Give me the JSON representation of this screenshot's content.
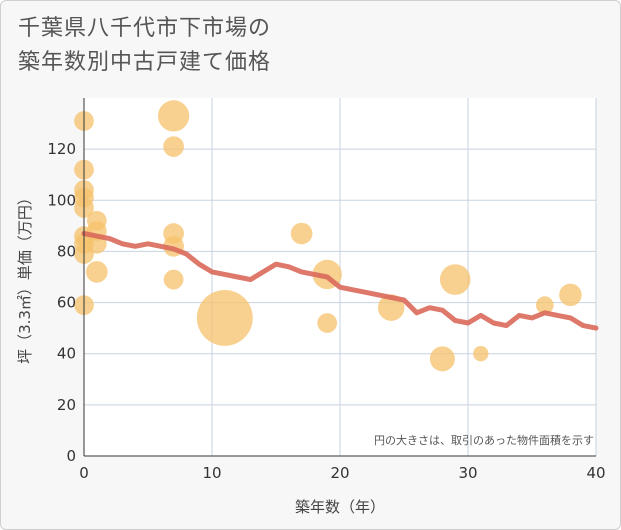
{
  "title_lines": [
    "千葉県八千代市下市場の",
    "築年数別中古戸建て価格"
  ],
  "chart_data": {
    "type": "scatter",
    "title": "千葉県八千代市下市場の築年数別中古戸建て価格",
    "xlabel": "築年数（年）",
    "ylabel": "坪（3.3㎡）単価（万円）",
    "xlim": [
      0,
      40
    ],
    "ylim": [
      0,
      140
    ],
    "xticks": [
      0,
      10,
      20,
      30,
      40
    ],
    "yticks": [
      0,
      20,
      40,
      60,
      80,
      100,
      120
    ],
    "grid": true,
    "note": "円の大きさは、取引のあった物件面積を示す",
    "colors": {
      "bubble": "#f5c26b",
      "trend": "#d9695a",
      "grid": "#c9d3e0",
      "plot_bg": "#ffffff"
    },
    "points": [
      {
        "x": 0,
        "y": 131,
        "size": 1
      },
      {
        "x": 0,
        "y": 112,
        "size": 1
      },
      {
        "x": 0,
        "y": 104,
        "size": 1
      },
      {
        "x": 0,
        "y": 101,
        "size": 1
      },
      {
        "x": 0,
        "y": 97,
        "size": 1
      },
      {
        "x": 0,
        "y": 86,
        "size": 1
      },
      {
        "x": 0,
        "y": 83,
        "size": 1
      },
      {
        "x": 0,
        "y": 79,
        "size": 1
      },
      {
        "x": 0,
        "y": 59,
        "size": 1
      },
      {
        "x": 1,
        "y": 92,
        "size": 1
      },
      {
        "x": 1,
        "y": 88,
        "size": 1
      },
      {
        "x": 1,
        "y": 83,
        "size": 1
      },
      {
        "x": 1,
        "y": 72,
        "size": 1.2
      },
      {
        "x": 7,
        "y": 133,
        "size": 2.5
      },
      {
        "x": 7,
        "y": 121,
        "size": 1.1
      },
      {
        "x": 7,
        "y": 87,
        "size": 1.1
      },
      {
        "x": 7,
        "y": 82,
        "size": 1.1
      },
      {
        "x": 7,
        "y": 69,
        "size": 1
      },
      {
        "x": 11,
        "y": 54,
        "size": 8
      },
      {
        "x": 17,
        "y": 87,
        "size": 1.2
      },
      {
        "x": 19,
        "y": 71,
        "size": 2.2
      },
      {
        "x": 19,
        "y": 52,
        "size": 1
      },
      {
        "x": 24,
        "y": 58,
        "size": 1.8
      },
      {
        "x": 28,
        "y": 38,
        "size": 1.6
      },
      {
        "x": 29,
        "y": 69,
        "size": 2.4
      },
      {
        "x": 31,
        "y": 40,
        "size": 0.6
      },
      {
        "x": 36,
        "y": 59,
        "size": 0.8
      },
      {
        "x": 38,
        "y": 63,
        "size": 1.3
      }
    ],
    "trend": {
      "x": [
        0,
        1,
        2,
        3,
        4,
        5,
        6,
        7,
        8,
        9,
        10,
        11,
        12,
        13,
        14,
        15,
        16,
        17,
        18,
        19,
        20,
        21,
        22,
        23,
        24,
        25,
        26,
        27,
        28,
        29,
        30,
        31,
        32,
        33,
        34,
        35,
        36,
        37,
        38,
        39,
        40
      ],
      "y": [
        87,
        86,
        85,
        83,
        82,
        83,
        82,
        81,
        79,
        75,
        72,
        71,
        70,
        69,
        72,
        75,
        74,
        72,
        71,
        70,
        66,
        65,
        64,
        63,
        62,
        61,
        56,
        58,
        57,
        53,
        52,
        55,
        52,
        51,
        55,
        54,
        56,
        55,
        54,
        51,
        50
      ]
    }
  }
}
